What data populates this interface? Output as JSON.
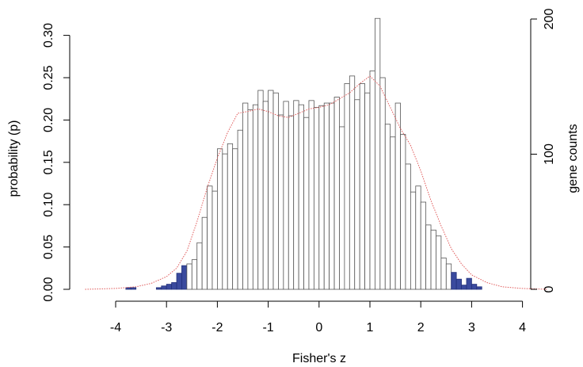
{
  "chart_data": {
    "type": "bar",
    "xlabel": "Fisher's z",
    "ylabel": "probability (p)",
    "ylabel_right": "gene counts",
    "xlim": [
      -4.6,
      4.6
    ],
    "ylim": [
      0,
      0.34
    ],
    "y2lim": [
      0,
      200
    ],
    "x_ticks": [
      -4,
      -3,
      -2,
      -1,
      0,
      1,
      2,
      3,
      4
    ],
    "y_ticks": [
      0.0,
      0.05,
      0.1,
      0.15,
      0.2,
      0.25,
      0.3
    ],
    "y_tick_labels": [
      "0.00",
      "0.05",
      "0.10",
      "0.15",
      "0.20",
      "0.25",
      "0.30"
    ],
    "y2_ticks": [
      0,
      100,
      200
    ],
    "y2_tick_labels": [
      "0",
      "100",
      "200"
    ],
    "bin_width": 0.1,
    "bin_start": -4.0,
    "density": [
      0.0,
      0.0,
      0.002,
      0.002,
      0.0,
      0.0,
      0.0,
      0.0,
      0.002,
      0.004,
      0.006,
      0.008,
      0.019,
      0.028,
      0.03,
      0.035,
      0.055,
      0.085,
      0.122,
      0.116,
      0.166,
      0.16,
      0.172,
      0.166,
      0.188,
      0.22,
      0.212,
      0.218,
      0.235,
      0.222,
      0.235,
      0.232,
      0.206,
      0.222,
      0.205,
      0.223,
      0.218,
      0.203,
      0.223,
      0.215,
      0.217,
      0.22,
      0.22,
      0.227,
      0.192,
      0.243,
      0.252,
      0.224,
      0.243,
      0.232,
      0.258,
      0.32,
      0.25,
      0.195,
      0.18,
      0.22,
      0.183,
      0.148,
      0.115,
      0.122,
      0.103,
      0.076,
      0.07,
      0.063,
      0.037,
      0.03,
      0.02,
      0.012,
      0.005,
      0.013,
      0.006,
      0.003
    ],
    "highlighted_bins": "z < -2.6 and z > 2.6",
    "bar_color": "#ffffff",
    "highlight_color": "#3a4a9e",
    "density_curve": {
      "color": "#e05a5a",
      "style": "dotted",
      "x": [
        -4.6,
        -4.0,
        -3.6,
        -3.3,
        -3.0,
        -2.8,
        -2.6,
        -2.4,
        -2.2,
        -2.0,
        -1.8,
        -1.6,
        -1.4,
        -1.2,
        -1.0,
        -0.8,
        -0.6,
        -0.4,
        -0.2,
        0.0,
        0.2,
        0.4,
        0.6,
        0.8,
        1.0,
        1.2,
        1.4,
        1.6,
        1.8,
        2.0,
        2.2,
        2.4,
        2.6,
        2.8,
        3.0,
        3.3,
        3.6,
        4.0,
        4.5
      ],
      "y": [
        0.0,
        0.001,
        0.003,
        0.007,
        0.015,
        0.025,
        0.045,
        0.08,
        0.12,
        0.155,
        0.185,
        0.208,
        0.21,
        0.213,
        0.21,
        0.205,
        0.203,
        0.208,
        0.213,
        0.215,
        0.218,
        0.225,
        0.232,
        0.243,
        0.252,
        0.24,
        0.215,
        0.19,
        0.17,
        0.14,
        0.105,
        0.075,
        0.048,
        0.03,
        0.017,
        0.008,
        0.003,
        0.001,
        0.0
      ]
    }
  }
}
